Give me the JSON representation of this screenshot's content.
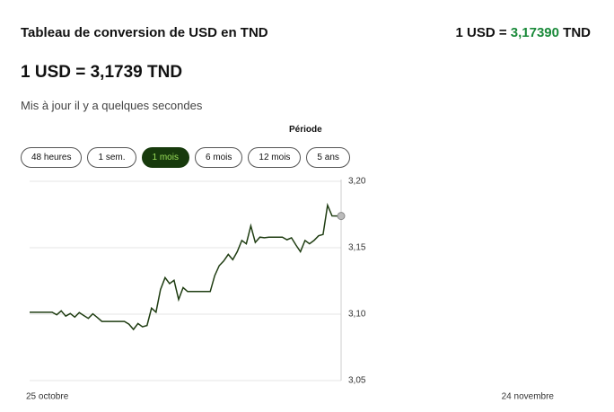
{
  "header": {
    "title": "Tableau de conversion de USD en TND",
    "rate_prefix": "1 USD =",
    "rate_value": "3,17390",
    "rate_suffix": "TND"
  },
  "rate": "1 USD = 3,1739 TND",
  "updated": "Mis à jour il y a quelques secondes",
  "period": {
    "label": "Période",
    "options": [
      "48 heures",
      "1 sem.",
      "1 mois",
      "6 mois",
      "12 mois",
      "5 ans"
    ],
    "active": 2
  },
  "chart_data": {
    "type": "line",
    "categories": [
      "25 octobre",
      null,
      null,
      null,
      null,
      null,
      null,
      null,
      null,
      null,
      null,
      null,
      null,
      null,
      null,
      null,
      null,
      null,
      null,
      null,
      null,
      null,
      null,
      null,
      null,
      null,
      null,
      null,
      null,
      null,
      null,
      null,
      null,
      null,
      null,
      null,
      null,
      null,
      null,
      null,
      null,
      null,
      null,
      null,
      null,
      null,
      null,
      null,
      null,
      null,
      null,
      null,
      null,
      null,
      null,
      null,
      null,
      null,
      null,
      null,
      null,
      null,
      null,
      null,
      null,
      null,
      null,
      null,
      null,
      "24 novembre"
    ],
    "series": [
      {
        "name": "USD/TND",
        "color": "#1f3d12",
        "values": [
          3.1014,
          3.1014,
          3.1014,
          3.1014,
          3.1014,
          3.1014,
          3.0995,
          3.1025,
          3.0985,
          3.1005,
          3.0978,
          3.1012,
          3.099,
          3.0968,
          3.1003,
          3.0975,
          3.0945,
          3.0945,
          3.0945,
          3.0945,
          3.0945,
          3.0945,
          3.0925,
          3.0885,
          3.093,
          3.0905,
          3.0915,
          3.1045,
          3.1015,
          3.1185,
          3.1275,
          3.123,
          3.1255,
          3.111,
          3.12,
          3.117,
          3.117,
          3.117,
          3.117,
          3.117,
          3.117,
          3.129,
          3.1365,
          3.14,
          3.145,
          3.141,
          3.147,
          3.1555,
          3.153,
          3.1665,
          3.154,
          3.158,
          3.1575,
          3.158,
          3.158,
          3.158,
          3.158,
          3.156,
          3.1575,
          3.152,
          3.147,
          3.1555,
          3.153,
          3.1555,
          3.159,
          3.16,
          3.182,
          3.174,
          3.1739,
          3.1739
        ]
      }
    ],
    "ylim": [
      3.05,
      3.2
    ],
    "yticks": [
      {
        "value": 3.05,
        "label": "3,05"
      },
      {
        "value": 3.1,
        "label": "3,10"
      },
      {
        "value": 3.15,
        "label": "3,15"
      },
      {
        "value": 3.2,
        "label": "3,20"
      }
    ],
    "grid": true
  }
}
